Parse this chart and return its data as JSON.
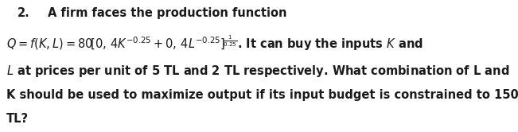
{
  "background_color": "#ffffff",
  "text_color": "#1a1a1a",
  "fontsize": 10.5,
  "num_label": "2.",
  "line1_text": "A firm faces the production function",
  "line2_formula": "$Q = f(K,L) = 80\\big[0, 4K^{-0.25} + 0, 4L^{-0.25}\\big]^{\\frac{1}{0.25}}$",
  "line2_rest": ". It can buy the inputs $K$ and",
  "line3": "$L$ at prices per unit of 5 TL and 2 TL respectively. What combination of L and",
  "line4": "K should be used to maximize output if its input budget is constrained to 150",
  "line5": "TL?",
  "fig_width": 6.51,
  "fig_height": 1.66,
  "dpi": 100
}
